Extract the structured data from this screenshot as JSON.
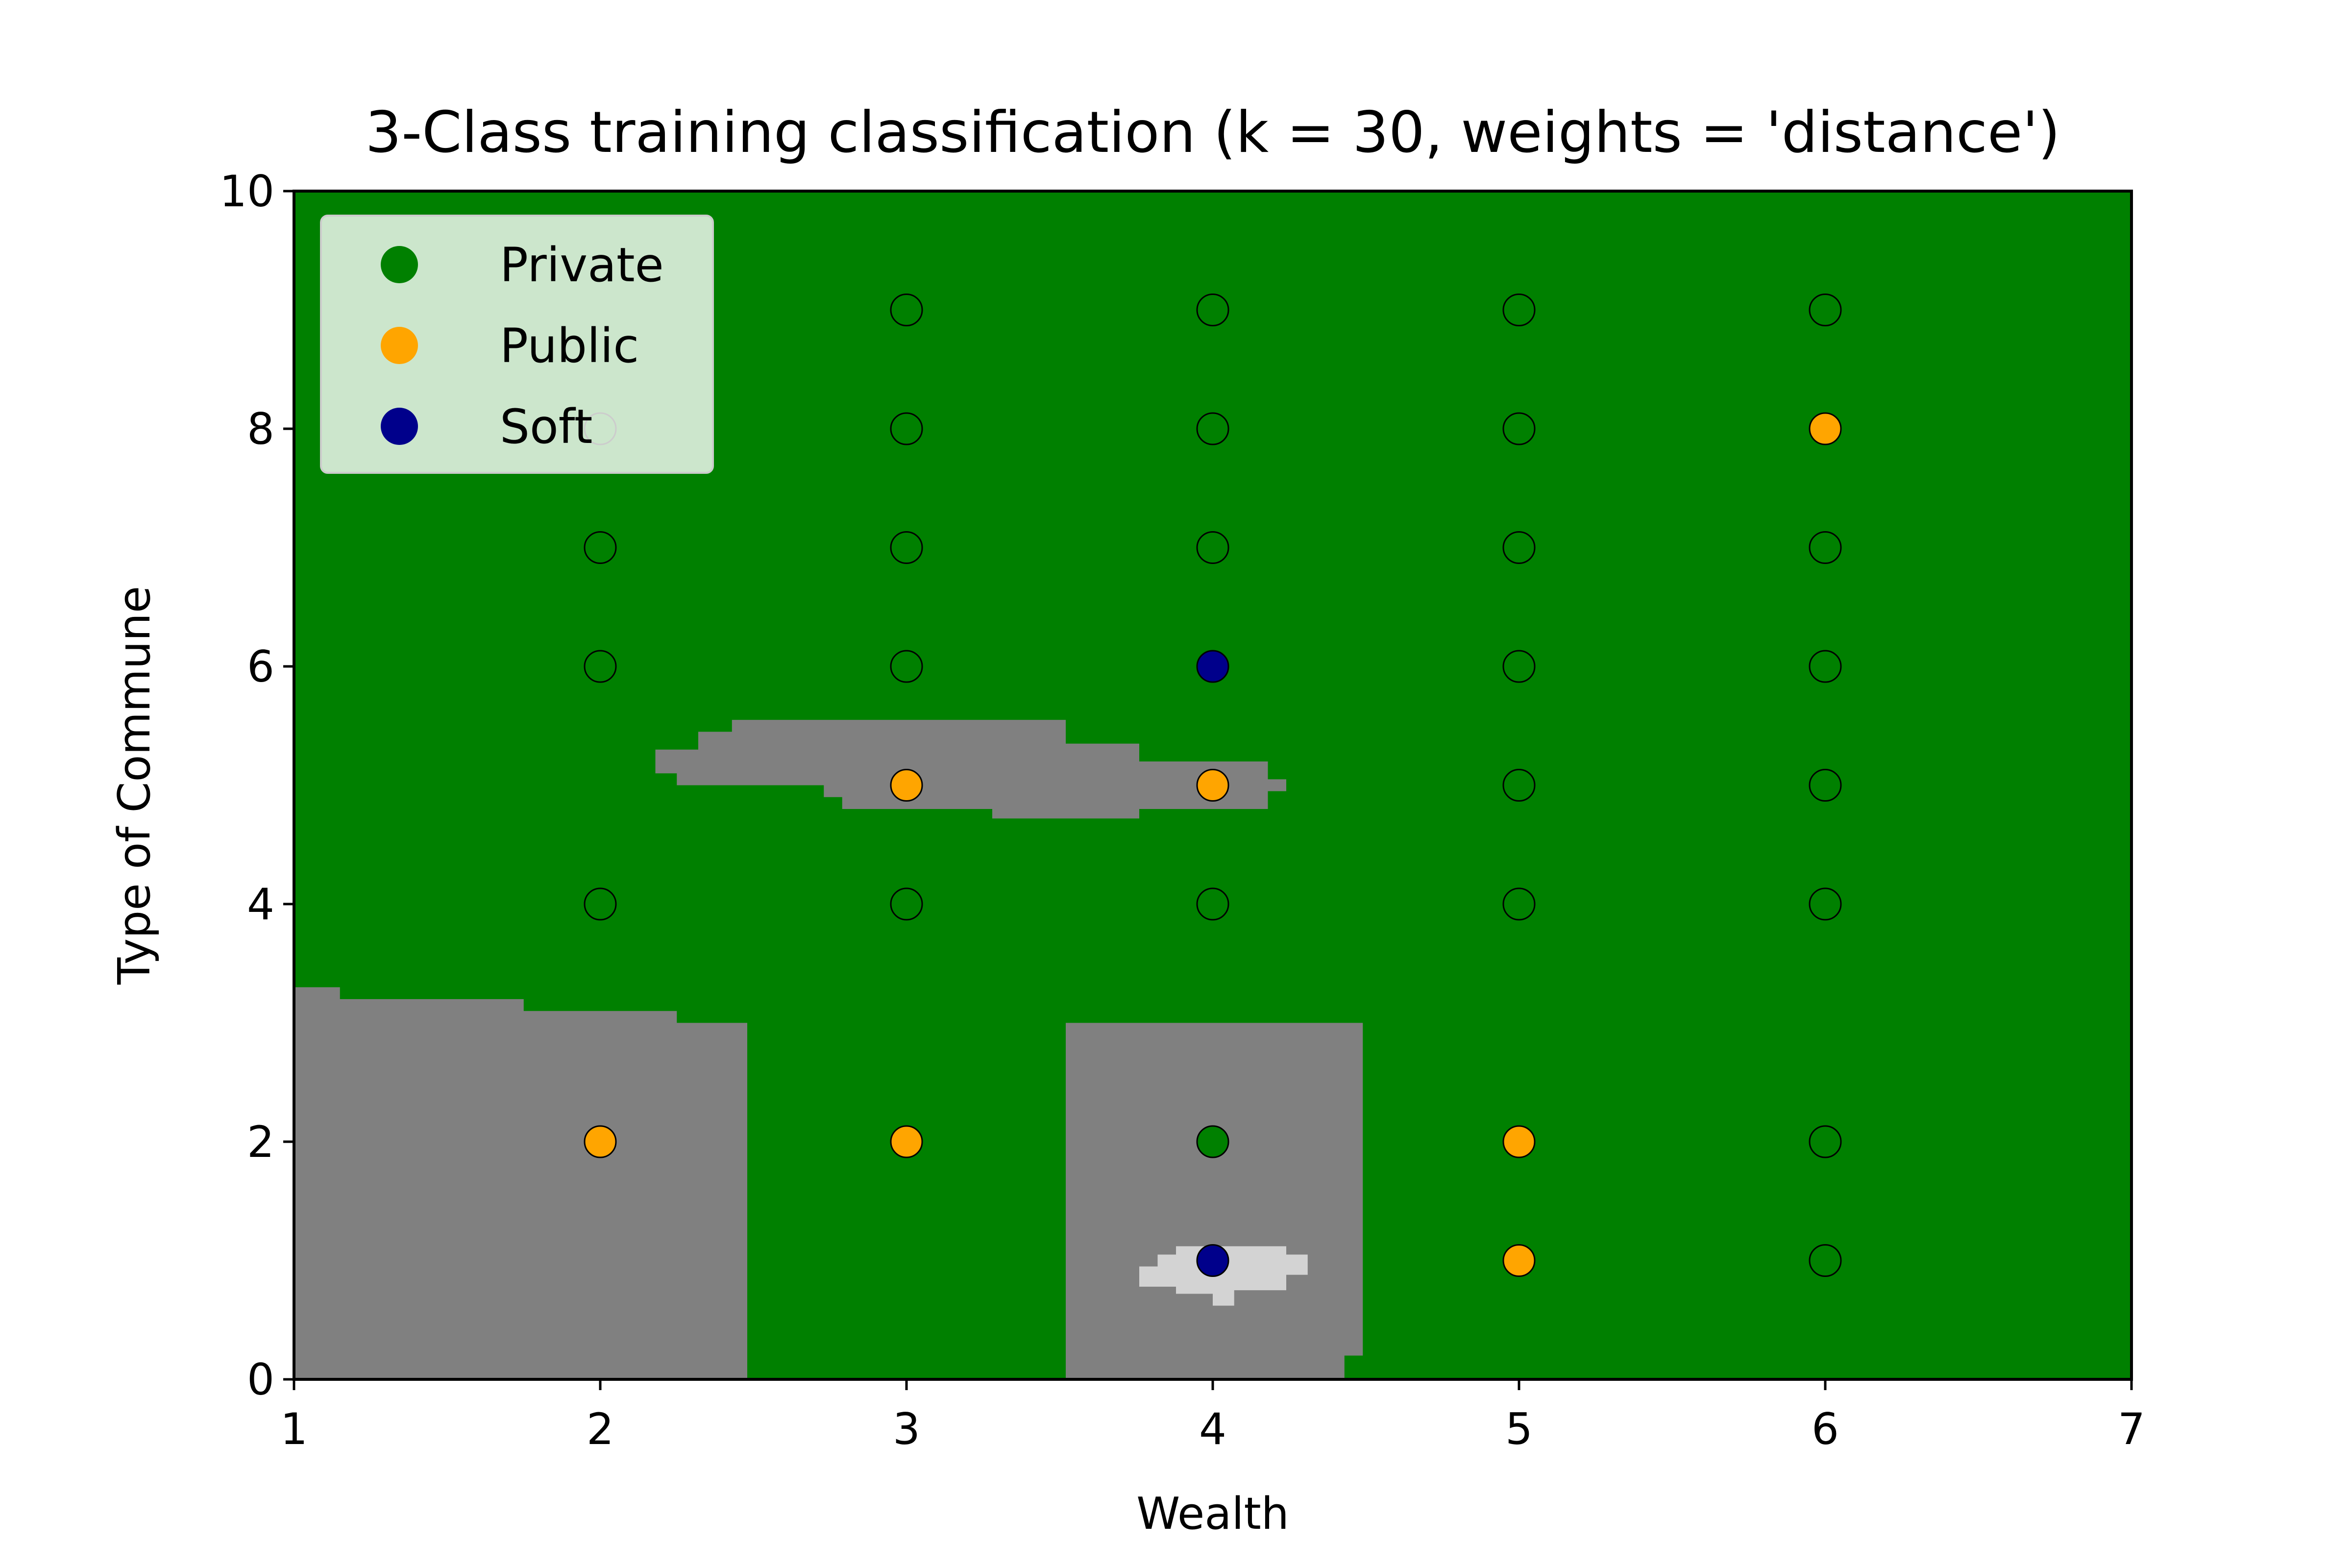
{
  "chart_data": {
    "type": "scatter",
    "title": "3-Class training classification (k = 30, weights = 'distance')",
    "xlabel": "Wealth",
    "ylabel": "Type of Commune",
    "xlim": [
      1,
      7
    ],
    "ylim": [
      0,
      10
    ],
    "xticks": [
      "1",
      "2",
      "3",
      "4",
      "5",
      "6",
      "7"
    ],
    "yticks": [
      "0",
      "2",
      "4",
      "6",
      "8",
      "10"
    ],
    "grid": false,
    "legend_position": "upper-left",
    "background_color": "#008000",
    "region_colors": {
      "Public": "#808080",
      "Soft": "#d3d3d3"
    },
    "decision_regions": [
      {
        "class": "Public",
        "points": [
          [
            1,
            0
          ],
          [
            1,
            3.3
          ],
          [
            1.15,
            3.3
          ],
          [
            1.15,
            3.2
          ],
          [
            1.75,
            3.2
          ],
          [
            1.75,
            3.1
          ],
          [
            2.25,
            3.1
          ],
          [
            2.25,
            3.0
          ],
          [
            2.48,
            3.0
          ],
          [
            2.48,
            0
          ]
        ]
      },
      {
        "class": "Public",
        "points": [
          [
            3.52,
            0
          ],
          [
            3.52,
            3.0
          ],
          [
            4.49,
            3.0
          ],
          [
            4.49,
            0.2
          ],
          [
            4.43,
            0.2
          ],
          [
            4.43,
            0
          ]
        ]
      },
      {
        "class": "Public",
        "points": [
          [
            2.18,
            5.3
          ],
          [
            2.32,
            5.3
          ],
          [
            2.32,
            5.45
          ],
          [
            2.43,
            5.45
          ],
          [
            2.43,
            5.55
          ],
          [
            3.52,
            5.55
          ],
          [
            3.52,
            5.35
          ],
          [
            3.76,
            5.35
          ],
          [
            3.76,
            5.2
          ],
          [
            4.18,
            5.2
          ],
          [
            4.18,
            5.05
          ],
          [
            4.24,
            5.05
          ],
          [
            4.24,
            4.95
          ],
          [
            4.18,
            4.95
          ],
          [
            4.18,
            4.8
          ],
          [
            3.76,
            4.8
          ],
          [
            3.76,
            4.72
          ],
          [
            3.28,
            4.72
          ],
          [
            3.28,
            4.8
          ],
          [
            2.79,
            4.8
          ],
          [
            2.79,
            4.9
          ],
          [
            2.73,
            4.9
          ],
          [
            2.73,
            5.0
          ],
          [
            2.25,
            5.0
          ],
          [
            2.25,
            5.1
          ],
          [
            2.18,
            5.1
          ]
        ]
      },
      {
        "class": "Soft",
        "points": [
          [
            3.76,
            0.78
          ],
          [
            3.76,
            0.95
          ],
          [
            3.82,
            0.95
          ],
          [
            3.82,
            1.05
          ],
          [
            3.88,
            1.05
          ],
          [
            3.88,
            1.12
          ],
          [
            4.24,
            1.12
          ],
          [
            4.24,
            1.05
          ],
          [
            4.31,
            1.05
          ],
          [
            4.31,
            0.88
          ],
          [
            4.24,
            0.88
          ],
          [
            4.24,
            0.75
          ],
          [
            4.07,
            0.75
          ],
          [
            4.07,
            0.62
          ],
          [
            4.0,
            0.62
          ],
          [
            4.0,
            0.72
          ],
          [
            3.88,
            0.72
          ],
          [
            3.88,
            0.78
          ]
        ]
      }
    ],
    "series": [
      {
        "name": "Private",
        "color": "#008000",
        "points": [
          [
            2,
            8
          ],
          [
            2,
            7
          ],
          [
            2,
            6
          ],
          [
            2,
            4
          ],
          [
            3,
            9
          ],
          [
            3,
            8
          ],
          [
            3,
            7
          ],
          [
            3,
            6
          ],
          [
            3,
            4
          ],
          [
            4,
            9
          ],
          [
            4,
            8
          ],
          [
            4,
            7
          ],
          [
            4,
            4
          ],
          [
            4,
            2
          ],
          [
            5,
            9
          ],
          [
            5,
            8
          ],
          [
            5,
            7
          ],
          [
            5,
            6
          ],
          [
            5,
            5
          ],
          [
            5,
            4
          ],
          [
            6,
            9
          ],
          [
            6,
            7
          ],
          [
            6,
            6
          ],
          [
            6,
            5
          ],
          [
            6,
            4
          ],
          [
            6,
            2
          ],
          [
            6,
            1
          ]
        ]
      },
      {
        "name": "Public",
        "color": "#ffa500",
        "points": [
          [
            2,
            2
          ],
          [
            3,
            5
          ],
          [
            3,
            2
          ],
          [
            4,
            5
          ],
          [
            5,
            2
          ],
          [
            5,
            1
          ],
          [
            6,
            8
          ]
        ]
      },
      {
        "name": "Soft",
        "color": "#00008b",
        "points": [
          [
            4,
            6
          ],
          [
            4,
            1
          ]
        ]
      }
    ]
  }
}
